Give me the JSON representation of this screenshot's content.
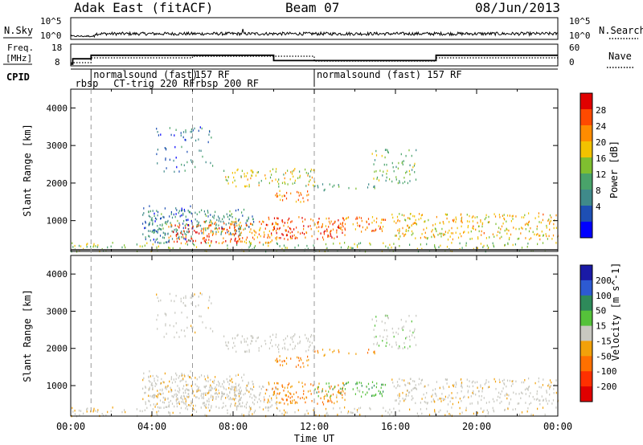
{
  "header": {
    "radar": "Adak East (fitACF)",
    "beam": "Beam 07",
    "date": "08/Jun/2013"
  },
  "noise_panel": {
    "left_label": "N.Sky",
    "right_label": "N.Search",
    "ticks_left": [
      "10^5",
      "10^0"
    ],
    "ticks_right": [
      "10^5",
      "10^0"
    ]
  },
  "freq_panel": {
    "left_label_line1": "Freq.",
    "left_label_line2": "[MHz]",
    "left_ticks": [
      "18",
      "8"
    ],
    "right_label": "Nave",
    "right_ticks": [
      "60",
      "0"
    ]
  },
  "cpid": {
    "label": "CPID",
    "segments": [
      {
        "text": "rbsp",
        "start_hour": 0.1,
        "row": 2
      },
      {
        "text": "normalsound (fast)",
        "start_hour": 1.0,
        "row": 1
      },
      {
        "text": "CT-trig 220 RF",
        "start_hour": 1.0,
        "row": 2
      },
      {
        "text": "157 RF",
        "start_hour": 6.0,
        "row": 1
      },
      {
        "text": "rbsp 200 RF",
        "start_hour": 6.0,
        "row": 2
      },
      {
        "text": "normalsound (fast) 157 RF",
        "start_hour": 12.0,
        "row": 1
      }
    ],
    "boundaries_hours": [
      1.0,
      6.0,
      12.0
    ]
  },
  "power_panel": {
    "ylabel": "Slant Range [km]",
    "cb_label": "Power [dB]",
    "cb_ticks": [
      "28",
      "24",
      "20",
      "16",
      "12",
      "8",
      "4"
    ]
  },
  "velocity_panel": {
    "ylabel": "Slant Range [km]",
    "cb_label": "Velocity [m s^-1]",
    "cb_ticks": [
      "200",
      "100",
      "50",
      "15",
      "-15",
      "-50",
      "-100",
      "-200"
    ]
  },
  "xaxis": {
    "label": "Time UT",
    "ticks": [
      "00:00",
      "04:00",
      "08:00",
      "12:00",
      "16:00",
      "20:00",
      "00:00"
    ]
  },
  "yaxis_ticks": [
    "4000",
    "3000",
    "2000",
    "1000"
  ],
  "chart_data": {
    "type": "heatmap",
    "title": "Adak East (fitACF)   Beam 07   08/Jun/2013",
    "xlabel": "Time UT",
    "ylabel": "Slant Range [km]",
    "xlim_hours": [
      0,
      24
    ],
    "ylim_km": [
      180,
      4500
    ],
    "colors": {
      "power": [
        "#0000ff",
        "#1e4fb4",
        "#3f8a8a",
        "#49a36a",
        "#7fbf30",
        "#f2c200",
        "#ff8c00",
        "#ff4a00",
        "#e00000"
      ],
      "velocity": [
        "#1a1aa6",
        "#2d5ad2",
        "#2e8a5a",
        "#55c23a",
        "#c8c8c0",
        "#f2a10a",
        "#ff7000",
        "#ff3000",
        "#e00000"
      ]
    },
    "frequency_trace": [
      {
        "hour": 0.0,
        "mhz": 9
      },
      {
        "hour": 0.1,
        "mhz": 12
      },
      {
        "hour": 1.0,
        "mhz": 14
      },
      {
        "hour": 10.0,
        "mhz": 11
      },
      {
        "hour": 18.0,
        "mhz": 14
      },
      {
        "hour": 24.0,
        "mhz": 14
      }
    ],
    "scatter_regions": [
      {
        "t0": 0.0,
        "t1": 24.0,
        "r0": 180,
        "r1": 420,
        "p": 14,
        "v": -10,
        "d": 0.55
      },
      {
        "t0": 3.8,
        "t1": 9.0,
        "r0": 600,
        "r1": 1300,
        "p": 8,
        "v": -5,
        "d": 0.85
      },
      {
        "t0": 4.8,
        "t1": 8.2,
        "r0": 400,
        "r1": 900,
        "p": 25,
        "v": -10,
        "d": 0.9
      },
      {
        "t0": 6.5,
        "t1": 10.2,
        "r0": 400,
        "r1": 1000,
        "p": 20,
        "v": 0,
        "d": 0.8
      },
      {
        "t0": 9.5,
        "t1": 13.5,
        "r0": 500,
        "r1": 1100,
        "p": 24,
        "v": -30,
        "d": 0.9
      },
      {
        "t0": 12.0,
        "t1": 15.5,
        "r0": 700,
        "r1": 1100,
        "p": 22,
        "v": 25,
        "d": 0.8
      },
      {
        "t0": 15.8,
        "t1": 24.0,
        "r0": 500,
        "r1": 1200,
        "p": 18,
        "v": -5,
        "d": 0.8
      },
      {
        "t0": 7.5,
        "t1": 12.0,
        "r0": 1900,
        "r1": 2400,
        "p": 16,
        "v": 0,
        "d": 0.7
      },
      {
        "t0": 10.0,
        "t1": 11.8,
        "r0": 1500,
        "r1": 1800,
        "p": 22,
        "v": -30,
        "d": 0.9
      },
      {
        "t0": 12.0,
        "t1": 15.0,
        "r0": 1800,
        "r1": 2000,
        "p": 10,
        "v": -30,
        "d": 0.5
      },
      {
        "t0": 14.8,
        "t1": 17.0,
        "r0": 2000,
        "r1": 2900,
        "p": 12,
        "v": 10,
        "d": 0.55
      },
      {
        "t0": 4.0,
        "t1": 7.0,
        "r0": 2300,
        "r1": 3500,
        "p": 6,
        "v": -5,
        "d": 0.3
      },
      {
        "t0": 3.5,
        "t1": 6.0,
        "r0": 400,
        "r1": 1400,
        "p": 5,
        "v": -5,
        "d": 0.6
      }
    ]
  }
}
